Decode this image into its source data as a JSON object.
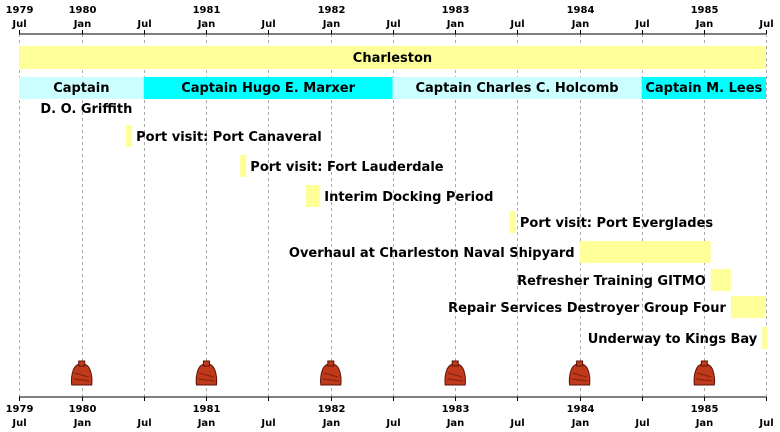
{
  "chart_data": {
    "type": "timeline",
    "x_unit": "date",
    "xlim": [
      "1979-07-01",
      "1985-07-01"
    ],
    "ticks": [
      {
        "date": "1979-07-01",
        "top": "1979",
        "bottom": "Jul"
      },
      {
        "date": "1980-01-01",
        "top": "1980",
        "bottom": "Jan"
      },
      {
        "date": "1980-07-01",
        "top": "",
        "bottom": "Jul"
      },
      {
        "date": "1981-01-01",
        "top": "1981",
        "bottom": "Jan"
      },
      {
        "date": "1981-07-01",
        "top": "",
        "bottom": "Jul"
      },
      {
        "date": "1982-01-01",
        "top": "1982",
        "bottom": "Jan"
      },
      {
        "date": "1982-07-01",
        "top": "",
        "bottom": "Jul"
      },
      {
        "date": "1983-01-01",
        "top": "1983",
        "bottom": "Jan"
      },
      {
        "date": "1983-07-01",
        "top": "",
        "bottom": "Jul"
      },
      {
        "date": "1984-01-01",
        "top": "1984",
        "bottom": "Jan"
      },
      {
        "date": "1984-07-01",
        "top": "",
        "bottom": "Jul"
      },
      {
        "date": "1985-01-01",
        "top": "1985",
        "bottom": "Jan"
      },
      {
        "date": "1985-07-01",
        "top": "",
        "bottom": "Jul"
      }
    ],
    "grid": true,
    "ship": {
      "label": "Charleston",
      "start": "1979-07-01",
      "end": "1985-07-01",
      "color": "#FFFF99"
    },
    "captains": [
      {
        "label": "Captain",
        "label2": "D. O. Griffith",
        "start": "1979-07-01",
        "end": "1980-07-01",
        "color": "#CCFFFF"
      },
      {
        "label": "Captain Hugo E. Marxer",
        "start": "1980-07-01",
        "end": "1982-07-01",
        "color": "#00FFFF"
      },
      {
        "label": "Captain Charles C. Holcomb",
        "start": "1982-07-01",
        "end": "1984-07-01",
        "color": "#CCFFFF"
      },
      {
        "label": "Captain M. Lees",
        "start": "1984-07-01",
        "end": "1985-07-01",
        "color": "#00FFFF"
      }
    ],
    "events": [
      {
        "label": "Port visit: Port Canaveral",
        "start": "1980-05-10",
        "end": "1980-05-28",
        "label_side": "right"
      },
      {
        "label": "Port visit: Fort Lauderdale",
        "start": "1981-04-10",
        "end": "1981-04-28",
        "label_side": "right"
      },
      {
        "label": "Interim Docking Period",
        "start": "1981-10-20",
        "end": "1981-12-01",
        "label_side": "right"
      },
      {
        "label": "Port visit: Port Everglades",
        "start": "1983-06-10",
        "end": "1983-06-28",
        "label_side": "right"
      },
      {
        "label": "Overhaul at Charleston Naval Shipyard",
        "start": "1984-01-01",
        "end": "1985-01-20",
        "label_side": "left"
      },
      {
        "label": "Refresher Training GITMO",
        "start": "1985-01-20",
        "end": "1985-03-20",
        "label_side": "left"
      },
      {
        "label": "Repair Services Destroyer Group Four",
        "start": "1985-03-20",
        "end": "1985-07-01",
        "label_side": "left"
      },
      {
        "label": "Underway to Kings Bay",
        "start": "1985-06-20",
        "end": "1985-07-01",
        "label_side": "left"
      }
    ],
    "event_color": "#FFFF99",
    "markers": [
      {
        "date": "1980-01-01",
        "icon": "bell-icon"
      },
      {
        "date": "1981-01-01",
        "icon": "bell-icon"
      },
      {
        "date": "1982-01-01",
        "icon": "bell-icon"
      },
      {
        "date": "1983-01-01",
        "icon": "bell-icon"
      },
      {
        "date": "1984-01-01",
        "icon": "bell-icon"
      },
      {
        "date": "1985-01-01",
        "icon": "bell-icon"
      }
    ],
    "marker_color": "#C0391B"
  }
}
